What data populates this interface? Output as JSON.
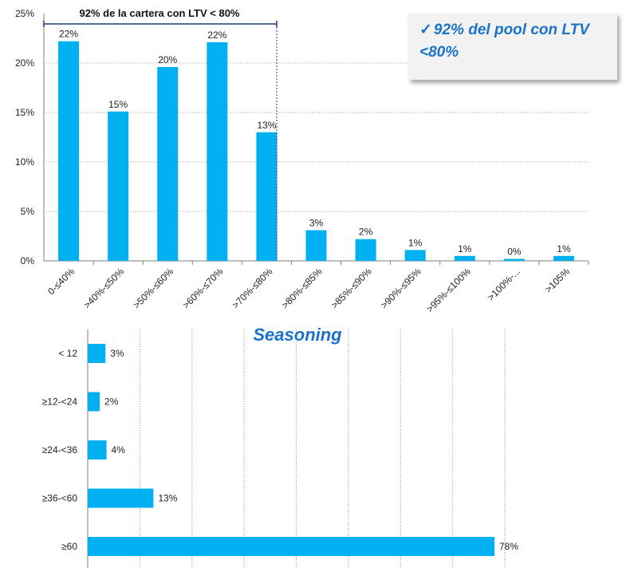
{
  "callout": {
    "check_icon": "✓",
    "text": "92% del pool con LTV <80%"
  },
  "chart_data": [
    {
      "type": "bar",
      "orientation": "vertical",
      "categories": [
        "0-≤40%",
        ">40%-≤50%",
        ">50%-≤60%",
        ">60%-≤70%",
        ">70%-≤80%",
        ">80%-≤85%",
        ">85%-≤90%",
        ">90%-≤95%",
        ">95%-≤100%",
        ">100%-...",
        ">105%"
      ],
      "values": [
        22.2,
        15.1,
        19.6,
        22.1,
        13.0,
        3.1,
        2.2,
        1.1,
        0.5,
        0.2,
        0.5
      ],
      "data_labels": [
        "22%",
        "15%",
        "20%",
        "22%",
        "13%",
        "3%",
        "2%",
        "1%",
        "1%",
        "0%",
        "1%"
      ],
      "ylim": [
        0,
        25
      ],
      "yticks": [
        "0%",
        "5%",
        "10%",
        "15%",
        "20%",
        "25%"
      ],
      "annotation": "92% de la cartera con LTV < 80%",
      "bar_color": "#00b0f0",
      "grid": true
    },
    {
      "type": "bar",
      "orientation": "horizontal",
      "title": "Seasoning",
      "categories": [
        "< 12",
        "≥12-<24",
        "≥24-<36",
        "≥36-<60",
        "≥60"
      ],
      "values": [
        3.4,
        2.3,
        3.6,
        12.6,
        78.0
      ],
      "data_labels": [
        "3%",
        "2%",
        "4%",
        "13%",
        "78%"
      ],
      "xlim": [
        0,
        80
      ],
      "bar_color": "#00b0f0",
      "grid": true
    }
  ]
}
